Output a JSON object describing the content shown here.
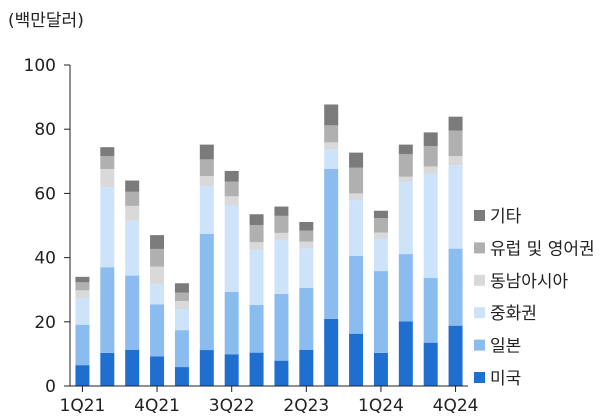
{
  "chart_data": {
    "type": "bar",
    "stacked": true,
    "unit_label": "(백만달러)",
    "ylim": [
      0,
      100
    ],
    "yticks": [
      0,
      20,
      40,
      60,
      80,
      100
    ],
    "xtick_labels": [
      {
        "index": 0,
        "label": "1Q21"
      },
      {
        "index": 3,
        "label": "4Q21"
      },
      {
        "index": 6,
        "label": "3Q22"
      },
      {
        "index": 9,
        "label": "2Q23"
      },
      {
        "index": 12,
        "label": "1Q24"
      },
      {
        "index": 15,
        "label": "4Q24"
      }
    ],
    "categories": [
      "1Q21",
      "2Q21",
      "3Q21",
      "4Q21",
      "1Q22",
      "2Q22",
      "3Q22",
      "4Q22",
      "1Q23",
      "2Q23",
      "3Q23",
      "4Q23",
      "1Q24",
      "2Q24",
      "3Q24",
      "4Q24"
    ],
    "series": [
      {
        "name": "미국",
        "color": "#1f6fd1",
        "values": [
          6.5,
          10.3,
          11.3,
          9.2,
          5.9,
          11.2,
          9.9,
          10.4,
          7.9,
          11.3,
          20.9,
          16.3,
          10.3,
          20.1,
          13.5,
          18.8
        ]
      },
      {
        "name": "일본",
        "color": "#8bbcf0",
        "values": [
          12.6,
          26.7,
          23.1,
          16.2,
          11.5,
          36.2,
          19.4,
          14.9,
          20.8,
          19.3,
          46.7,
          24.2,
          25.5,
          21.0,
          20.2,
          24.0
        ]
      },
      {
        "name": "중화권",
        "color": "#cde3fa",
        "values": [
          8.3,
          25.0,
          17.1,
          6.5,
          6.6,
          14.9,
          27.1,
          17.1,
          16.8,
          12.3,
          6.1,
          17.4,
          10.0,
          22.6,
          32.5,
          26.0
        ]
      },
      {
        "name": "동남아시아",
        "color": "#d9d9d9",
        "values": [
          2.4,
          5.6,
          4.6,
          5.3,
          2.5,
          3.1,
          2.7,
          2.4,
          2.2,
          2.1,
          2.2,
          2.1,
          2.0,
          1.5,
          2.2,
          2.8
        ]
      },
      {
        "name": "유럽 및 영어권",
        "color": "#b0b0b0",
        "values": [
          2.5,
          4.0,
          4.4,
          5.5,
          2.6,
          5.2,
          4.6,
          5.3,
          5.3,
          3.4,
          5.3,
          8.0,
          4.5,
          7.0,
          6.3,
          8.0
        ]
      },
      {
        "name": "기타",
        "color": "#7b7b7b",
        "values": [
          1.7,
          2.8,
          3.5,
          4.3,
          2.9,
          4.6,
          3.3,
          3.4,
          2.9,
          2.7,
          6.5,
          4.7,
          2.3,
          3.0,
          4.3,
          4.3
        ]
      }
    ],
    "legend_position": "right",
    "grid": false
  }
}
